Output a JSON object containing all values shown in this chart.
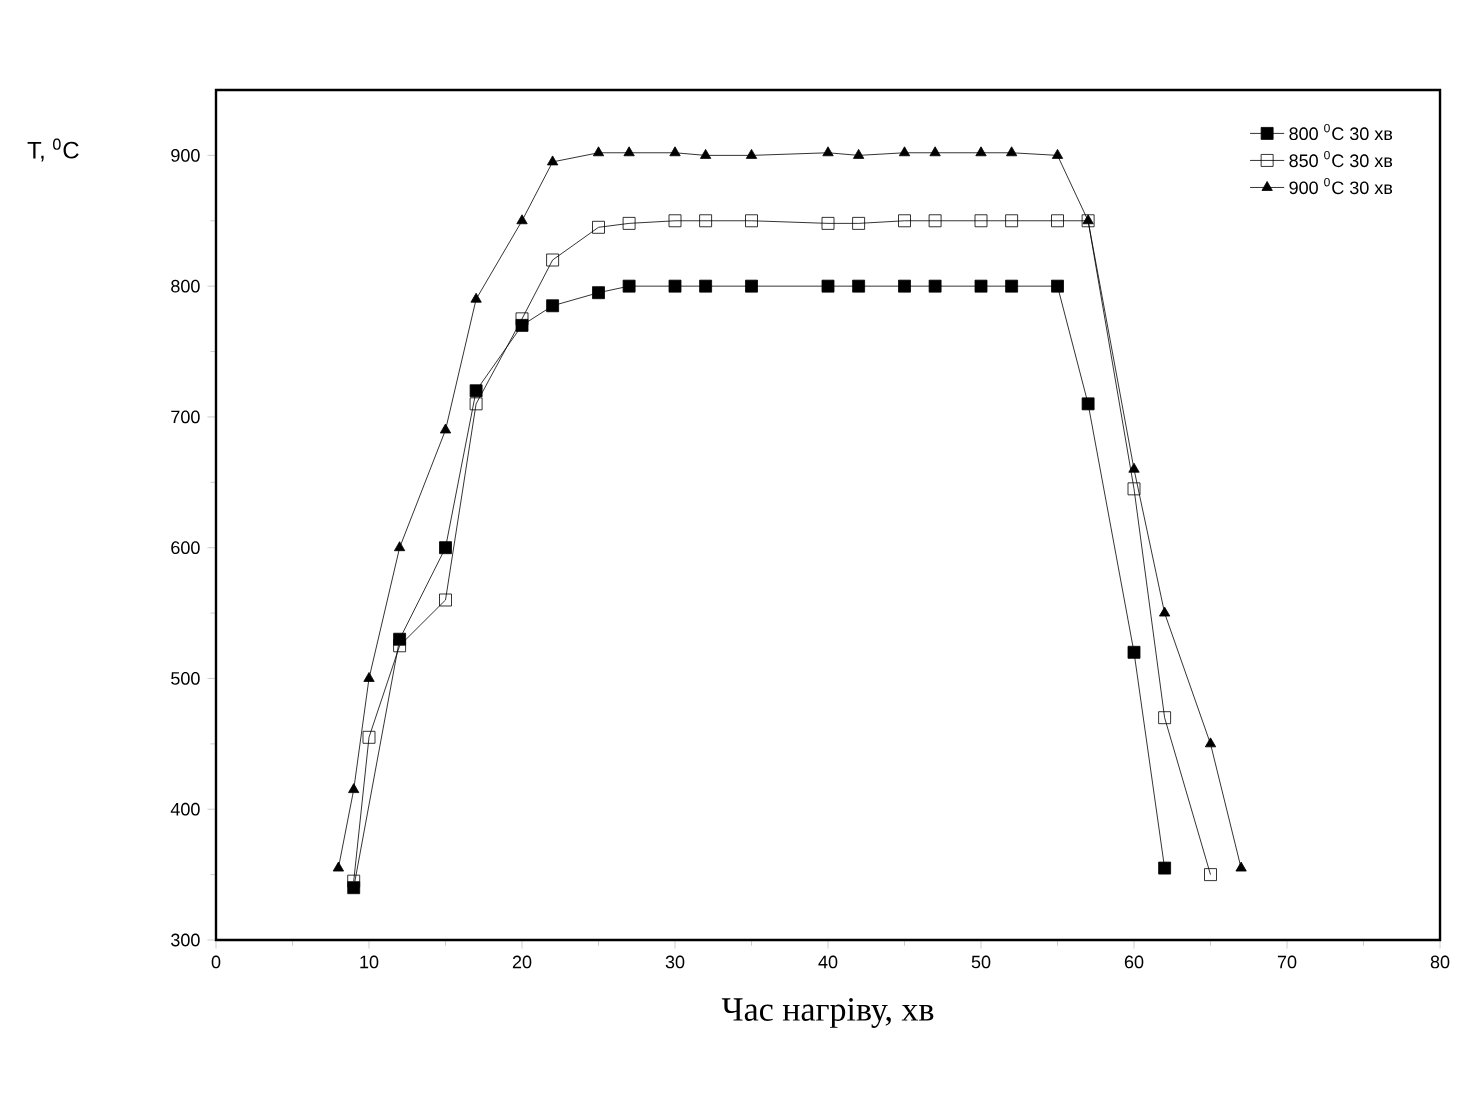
{
  "chart_data": {
    "type": "line",
    "xlabel": "Час нагріву, хв",
    "ylabel": "T, $^{0}$C",
    "xlim": [
      0,
      80
    ],
    "ylim": [
      300,
      950
    ],
    "xticks": [
      0,
      10,
      20,
      30,
      40,
      50,
      60,
      70,
      80
    ],
    "yticks": [
      300,
      400,
      500,
      600,
      700,
      800,
      900
    ],
    "legend": "top right",
    "line_style": "solid",
    "grid": false,
    "series": [
      {
        "name": "800 $^{0}$C 30 хв",
        "color": "#000000",
        "marker": "square*",
        "x": [
          9,
          12,
          15,
          17,
          20,
          22,
          25,
          27,
          30,
          32,
          35,
          40,
          42,
          45,
          47,
          50,
          52,
          55,
          57,
          60,
          62
        ],
        "values": [
          340,
          530,
          600,
          720,
          770,
          785,
          795,
          800,
          800,
          800,
          800,
          800,
          800,
          800,
          800,
          800,
          800,
          800,
          710,
          520,
          355
        ]
      },
      {
        "name": "850 $^{0}$C 30 хв",
        "color": "#000000",
        "marker": "square",
        "x": [
          9,
          10,
          12,
          15,
          17,
          20,
          22,
          25,
          27,
          30,
          32,
          35,
          40,
          42,
          45,
          47,
          50,
          52,
          55,
          57,
          60,
          62,
          65
        ],
        "values": [
          345,
          455,
          525,
          560,
          710,
          775,
          820,
          845,
          848,
          850,
          850,
          850,
          848,
          848,
          850,
          850,
          850,
          850,
          850,
          850,
          645,
          470,
          350
        ]
      },
      {
        "name": "900 $^{0}$C 30 хв",
        "color": "#000000",
        "marker": "triangle*",
        "x": [
          8,
          9,
          10,
          12,
          15,
          17,
          20,
          22,
          25,
          27,
          30,
          32,
          35,
          40,
          42,
          45,
          47,
          50,
          52,
          55,
          57,
          60,
          62,
          65,
          67
        ],
        "values": [
          355,
          415,
          500,
          600,
          690,
          790,
          850,
          895,
          902,
          902,
          902,
          900,
          900,
          902,
          900,
          902,
          902,
          902,
          902,
          900,
          850,
          660,
          550,
          450,
          355
        ]
      }
    ]
  }
}
